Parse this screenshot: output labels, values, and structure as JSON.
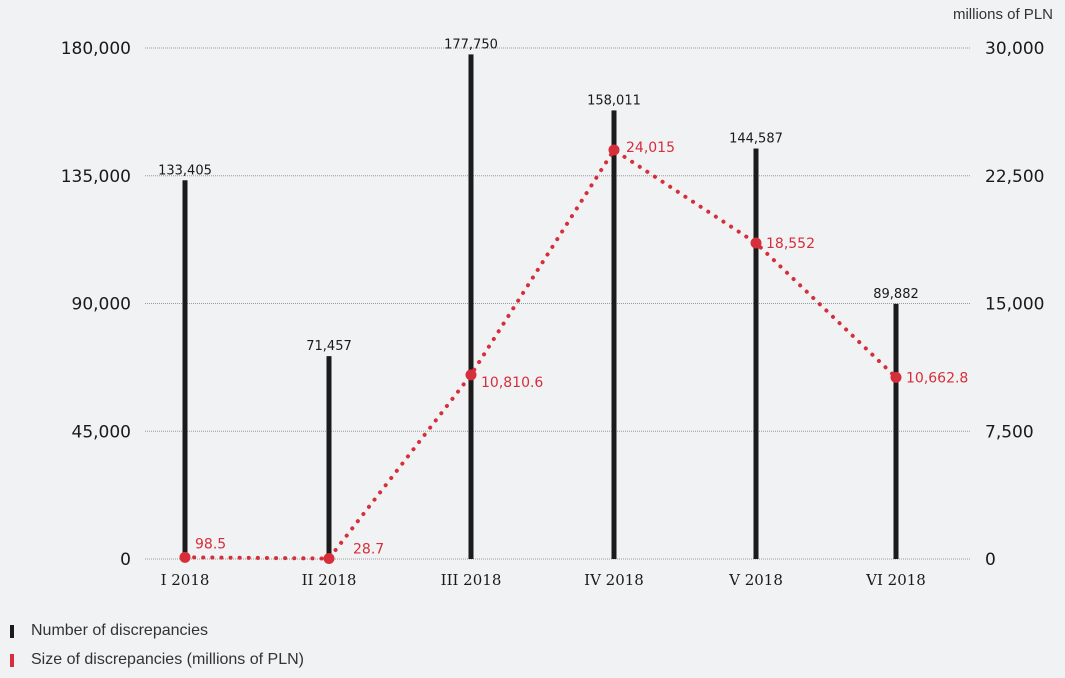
{
  "unit_label": "millions of PLN",
  "colors": {
    "bar": "#1b1b1b",
    "line": "#d62e3a",
    "grid": "#9a9a9a",
    "background": "#f1f2f4"
  },
  "legend": [
    {
      "label": "Number of discrepancies",
      "color": "#1b1b1b"
    },
    {
      "label": "Size of discrepancies (millions of PLN)",
      "color": "#d62e3a"
    }
  ],
  "chart_data": {
    "type": "bar",
    "categories": [
      "I 2018",
      "II 2018",
      "III 2018",
      "IV 2018",
      "V 2018",
      "VI 2018"
    ],
    "series": [
      {
        "name": "Number of discrepancies",
        "type": "bar",
        "axis": "left",
        "values": [
          133405,
          71457,
          177750,
          158011,
          144587,
          89882
        ],
        "labels": [
          "133,405",
          "71,457",
          "177,750",
          "158,011",
          "144,587",
          "89,882"
        ]
      },
      {
        "name": "Size of discrepancies (millions of PLN)",
        "type": "line",
        "axis": "right",
        "style": "dotted",
        "values": [
          98.5,
          28.7,
          10810.6,
          24015,
          18552,
          10662.8
        ],
        "labels": [
          "98.5",
          "28.7",
          "10,810.6",
          "24,015",
          "18,552",
          "10,662.8"
        ]
      }
    ],
    "y_left": {
      "ylim": [
        0,
        180000
      ],
      "ticks": [
        0,
        45000,
        90000,
        135000,
        180000
      ],
      "tick_labels": [
        "0",
        "45,000",
        "90,000",
        "135,000",
        "180,000"
      ]
    },
    "y_right": {
      "ylim": [
        0,
        30000
      ],
      "ticks": [
        0,
        7500,
        15000,
        22500,
        30000
      ],
      "tick_labels": [
        "0",
        "7,500",
        "15,000",
        "22,500",
        "30,000"
      ]
    },
    "grid": true,
    "legend_position": "bottom-left"
  }
}
